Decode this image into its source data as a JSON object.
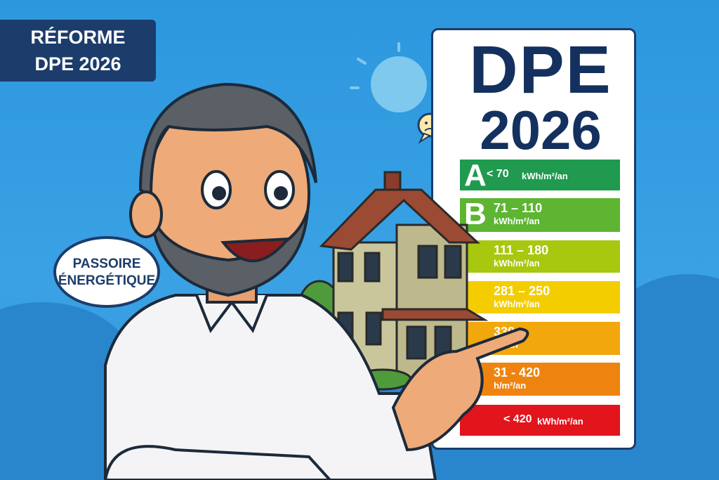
{
  "badge": {
    "line1": "RÉFORME",
    "line2": "DPE 2026"
  },
  "label_card": {
    "title": "DPE",
    "year": "2026",
    "rows": [
      {
        "letter": "A",
        "range": "< 70",
        "unit": "kWh/m²/an",
        "color": "#1f9a4f"
      },
      {
        "letter": "B",
        "range": "71 – 110",
        "unit": "kWh/m²/an",
        "color": "#5db532"
      },
      {
        "letter": "",
        "range": "111 – 180",
        "unit": "kWh/m²/an",
        "color": "#a8c70f"
      },
      {
        "letter": "",
        "range": "281 – 250",
        "unit": "kWh/m²/an",
        "color": "#f4cd00"
      },
      {
        "letter": "",
        "range": "330",
        "unit": "m²/an",
        "color": "#f2a70d"
      },
      {
        "letter": "",
        "range": "31 - 420",
        "unit": "h/m²/an",
        "color": "#ee840f"
      },
      {
        "letter": "",
        "range": "< 420",
        "unit": "kWh/m²/an",
        "color": "#e2141c"
      }
    ]
  },
  "speech_bubble": {
    "line1": "PASSOIRE",
    "line2": "ÉNERGÉTIQUE"
  },
  "icons": [
    "sun-icon",
    "sad-face-speech-icon",
    "house-illustration",
    "man-pointing-illustration"
  ]
}
